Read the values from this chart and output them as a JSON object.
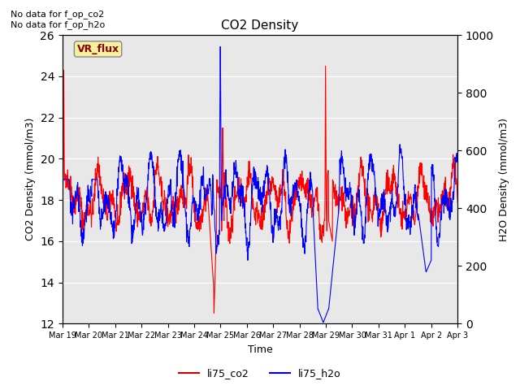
{
  "title": "CO2 Density",
  "xlabel": "Time",
  "ylabel_left": "CO2 Density (mmol/m3)",
  "ylabel_right": "H2O Density (mmol/m3)",
  "ylim_left": [
    12,
    26
  ],
  "ylim_right": [
    0,
    1000
  ],
  "no_data_text_1": "No data for f_op_co2",
  "no_data_text_2": "No data for f_op_h2o",
  "vr_flux_label": "VR_flux",
  "legend_labels": [
    "li75_co2",
    "li75_h2o"
  ],
  "line_colors": [
    "red",
    "blue"
  ],
  "background_color": "#e8e8e8",
  "fig_color": "#ffffff",
  "xtick_labels": [
    "Mar 19",
    "Mar 20",
    "Mar 21",
    "Mar 22",
    "Mar 23",
    "Mar 24",
    "Mar 25",
    "Mar 26",
    "Mar 27",
    "Mar 28",
    "Mar 29",
    "Mar 30",
    "Mar 31",
    "Apr 1",
    "Apr 2",
    "Apr 3"
  ],
  "grid_color": "#ffffff",
  "legend_line_color_co2": "#cc0000",
  "legend_line_color_h2o": "#0000cc"
}
